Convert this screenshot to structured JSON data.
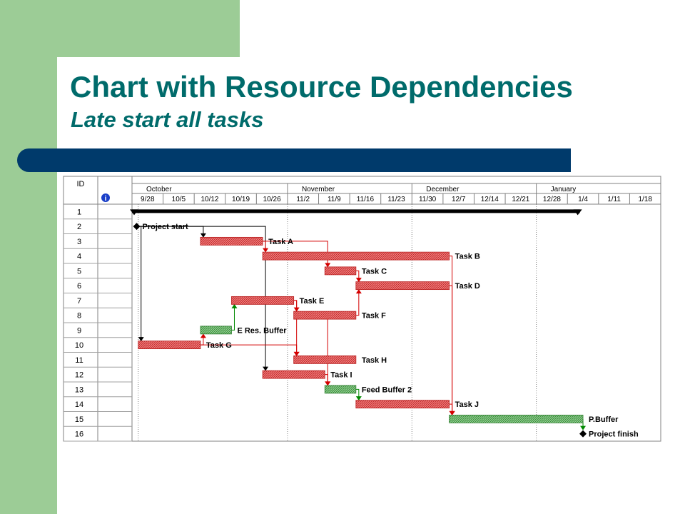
{
  "slide": {
    "title": "Chart with Resource Dependencies",
    "subtitle": "Late start all tasks",
    "colors": {
      "background_accent": "#9ccc96",
      "title_text": "#006b6b",
      "title_bar": "#003a6b",
      "task_bar": "#e05b5b",
      "buffer_bar": "#5caa5c",
      "dependency_red": "#d40000",
      "dependency_green": "#008800",
      "summary_bar": "#000000"
    }
  },
  "chart_data": {
    "type": "gantt",
    "columns": {
      "id_header": "ID",
      "info_icon": "info-icon"
    },
    "months": [
      {
        "label": "October",
        "start_week": 0,
        "span_weeks": 5
      },
      {
        "label": "November",
        "start_week": 5,
        "span_weeks": 4
      },
      {
        "label": "December",
        "start_week": 9,
        "span_weeks": 4
      },
      {
        "label": "January",
        "start_week": 13,
        "span_weeks": 4
      }
    ],
    "weeks": [
      "9/28",
      "10/5",
      "10/12",
      "10/19",
      "10/26",
      "11/2",
      "11/9",
      "11/16",
      "11/23",
      "11/30",
      "12/7",
      "12/14",
      "12/21",
      "12/28",
      "1/4",
      "1/11",
      "1/18"
    ],
    "rows": [
      "1",
      "2",
      "3",
      "4",
      "5",
      "6",
      "7",
      "8",
      "9",
      "10",
      "11",
      "12",
      "13",
      "14",
      "15",
      "16"
    ],
    "tasks": [
      {
        "row": 1,
        "label": "",
        "kind": "summary",
        "start": 0.0,
        "end": 14.4
      },
      {
        "row": 2,
        "label": "Project start",
        "kind": "milestone",
        "start": 0.15
      },
      {
        "row": 3,
        "label": "Task A",
        "kind": "task",
        "start": 2.2,
        "end": 4.2
      },
      {
        "row": 4,
        "label": "Task B",
        "kind": "task",
        "start": 4.2,
        "end": 10.2
      },
      {
        "row": 5,
        "label": "Task C",
        "kind": "task",
        "start": 6.2,
        "end": 7.2
      },
      {
        "row": 6,
        "label": "Task D",
        "kind": "task",
        "start": 7.2,
        "end": 10.2
      },
      {
        "row": 7,
        "label": "Task E",
        "kind": "task",
        "start": 3.2,
        "end": 5.2
      },
      {
        "row": 8,
        "label": "Task F",
        "kind": "task",
        "start": 5.2,
        "end": 7.2
      },
      {
        "row": 9,
        "label": "E Res. Buffer",
        "kind": "buffer",
        "start": 2.2,
        "end": 3.2
      },
      {
        "row": 10,
        "label": "Task G",
        "kind": "task",
        "start": 0.2,
        "end": 2.2
      },
      {
        "row": 11,
        "label": "Task H",
        "kind": "task",
        "start": 5.2,
        "end": 7.2
      },
      {
        "row": 12,
        "label": "Task I",
        "kind": "task",
        "start": 4.2,
        "end": 6.2
      },
      {
        "row": 13,
        "label": "Feed Buffer 2",
        "kind": "buffer",
        "start": 6.2,
        "end": 7.2
      },
      {
        "row": 14,
        "label": "Task J",
        "kind": "task",
        "start": 7.2,
        "end": 10.2
      },
      {
        "row": 15,
        "label": "P.Buffer",
        "kind": "buffer",
        "start": 10.2,
        "end": 14.5
      },
      {
        "row": 16,
        "label": "Project finish",
        "kind": "milestone",
        "start": 14.5
      }
    ],
    "dependencies": [
      {
        "from": 2,
        "to": 3,
        "type": "black"
      },
      {
        "from": 2,
        "to": 10,
        "type": "black"
      },
      {
        "from": 2,
        "to": 12,
        "type": "black"
      },
      {
        "from": 3,
        "to": 4,
        "type": "red"
      },
      {
        "from": 3,
        "to": 5,
        "type": "red"
      },
      {
        "from": 4,
        "to": 15,
        "type": "red"
      },
      {
        "from": 5,
        "to": 6,
        "type": "red"
      },
      {
        "from": 6,
        "to": 15,
        "type": "red"
      },
      {
        "from": 7,
        "to": 8,
        "type": "red"
      },
      {
        "from": 7,
        "to": 11,
        "type": "red"
      },
      {
        "from": 8,
        "to": 6,
        "type": "red"
      },
      {
        "from": 8,
        "to": 13,
        "type": "red"
      },
      {
        "from": 9,
        "to": 7,
        "type": "green"
      },
      {
        "from": 10,
        "to": 9,
        "type": "red"
      },
      {
        "from": 10,
        "to": 11,
        "type": "red"
      },
      {
        "from": 12,
        "to": 13,
        "type": "red"
      },
      {
        "from": 13,
        "to": 14,
        "type": "green"
      },
      {
        "from": 14,
        "to": 15,
        "type": "red"
      },
      {
        "from": 15,
        "to": 16,
        "type": "green"
      }
    ]
  }
}
